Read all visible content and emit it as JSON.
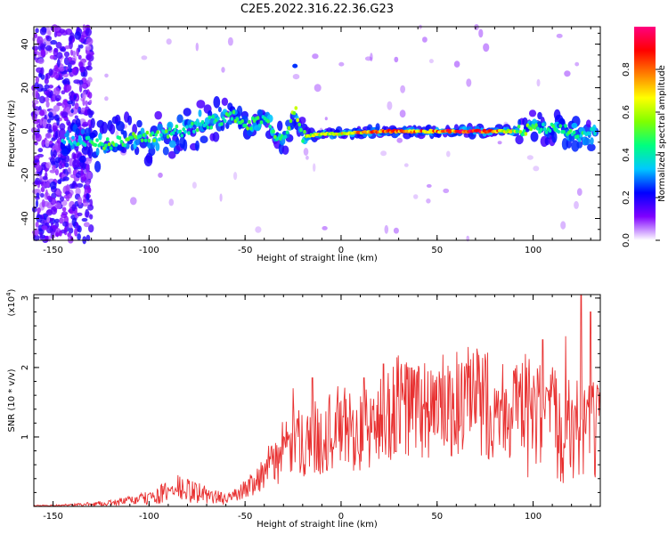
{
  "title": "C2E5.2022.316.22.36.G23",
  "chart_data": [
    {
      "type": "heatmap",
      "xlabel": "Height of straight line (km)",
      "ylabel": "Frequency (Hz)",
      "xlim": [
        -160,
        135
      ],
      "ylim": [
        -50,
        48
      ],
      "xticks": [
        -150,
        -100,
        -50,
        0,
        50,
        100
      ],
      "yticks": [
        -40,
        -20,
        0,
        20,
        40
      ],
      "colorbar": {
        "label": "Normalized spectral amplitude",
        "range": [
          0,
          1
        ],
        "ticks": [
          "0.0",
          "0.2",
          "0.4",
          "0.6",
          "0.8"
        ],
        "colormap": [
          "#ffffff",
          "#7f00ff",
          "#0000ff",
          "#00c8ff",
          "#00ff7f",
          "#80ff00",
          "#ffff00",
          "#ff8000",
          "#ff0000",
          "#ff007f"
        ]
      },
      "ridge": [
        {
          "x": -145,
          "y": -3,
          "amp": 0.35
        },
        {
          "x": -135,
          "y": -5,
          "amp": 0.45
        },
        {
          "x": -125,
          "y": -6,
          "amp": 0.5
        },
        {
          "x": -115,
          "y": -5,
          "amp": 0.5
        },
        {
          "x": -105,
          "y": -3,
          "amp": 0.5
        },
        {
          "x": -95,
          "y": -2,
          "amp": 0.5
        },
        {
          "x": -85,
          "y": 0,
          "amp": 0.45
        },
        {
          "x": -75,
          "y": 2,
          "amp": 0.45
        },
        {
          "x": -65,
          "y": 5,
          "amp": 0.45
        },
        {
          "x": -55,
          "y": 7,
          "amp": 0.5
        },
        {
          "x": -48,
          "y": 3,
          "amp": 0.5
        },
        {
          "x": -40,
          "y": 6,
          "amp": 0.45
        },
        {
          "x": -34,
          "y": -1,
          "amp": 0.5
        },
        {
          "x": -29,
          "y": -4,
          "amp": 0.5
        },
        {
          "x": -24,
          "y": 10,
          "amp": 0.6
        },
        {
          "x": -20,
          "y": -2,
          "amp": 0.6
        },
        {
          "x": 0,
          "y": -1,
          "amp": 0.7
        },
        {
          "x": 20,
          "y": 0,
          "amp": 0.85
        },
        {
          "x": 50,
          "y": 0,
          "amp": 0.85
        },
        {
          "x": 70,
          "y": 0,
          "amp": 0.95
        },
        {
          "x": 90,
          "y": 0,
          "amp": 0.65
        },
        {
          "x": 100,
          "y": 2,
          "amp": 0.5
        },
        {
          "x": 115,
          "y": 1,
          "amp": 0.5
        },
        {
          "x": 125,
          "y": -2,
          "amp": 0.45
        },
        {
          "x": 133,
          "y": -1,
          "amp": 0.45
        }
      ]
    },
    {
      "type": "line",
      "xlabel": "Height of straight line (km)",
      "ylabel": "SNR (10 * v/v)",
      "y_scale_label": "(x10",
      "y_scale_exponent": "4",
      "y_scale_suffix": ")",
      "xlim": [
        -160,
        135
      ],
      "ylim": [
        0,
        3.05
      ],
      "xticks": [
        -150,
        -100,
        -50,
        0,
        50,
        100
      ],
      "yticks": [
        1,
        2,
        3
      ],
      "color": "#e83030",
      "envelope": [
        {
          "x": -160,
          "y": 0.01
        },
        {
          "x": -140,
          "y": 0.02
        },
        {
          "x": -120,
          "y": 0.05
        },
        {
          "x": -100,
          "y": 0.12
        },
        {
          "x": -85,
          "y": 0.25
        },
        {
          "x": -75,
          "y": 0.2
        },
        {
          "x": -60,
          "y": 0.1
        },
        {
          "x": -50,
          "y": 0.25
        },
        {
          "x": -40,
          "y": 0.5
        },
        {
          "x": -30,
          "y": 0.8
        },
        {
          "x": -20,
          "y": 0.95
        },
        {
          "x": -10,
          "y": 1.0
        },
        {
          "x": 0,
          "y": 1.15
        },
        {
          "x": 10,
          "y": 1.05
        },
        {
          "x": 20,
          "y": 1.2
        },
        {
          "x": 30,
          "y": 1.45
        },
        {
          "x": 40,
          "y": 1.4
        },
        {
          "x": 50,
          "y": 1.4
        },
        {
          "x": 70,
          "y": 1.5
        },
        {
          "x": 80,
          "y": 1.45
        },
        {
          "x": 90,
          "y": 1.4
        },
        {
          "x": 100,
          "y": 1.25
        },
        {
          "x": 110,
          "y": 1.2
        },
        {
          "x": 120,
          "y": 1.1
        },
        {
          "x": 135,
          "y": 1.05
        }
      ],
      "peaks": [
        {
          "x": -85,
          "y": 0.45
        },
        {
          "x": -25,
          "y": 1.7
        },
        {
          "x": -15,
          "y": 1.85
        },
        {
          "x": 12,
          "y": 1.85
        },
        {
          "x": 22,
          "y": 2.05
        },
        {
          "x": 37,
          "y": 2.0
        },
        {
          "x": 58,
          "y": 1.85
        },
        {
          "x": 90,
          "y": 1.95
        },
        {
          "x": 105,
          "y": 2.4
        },
        {
          "x": 117,
          "y": 2.45
        },
        {
          "x": 125,
          "y": 3.05
        },
        {
          "x": 130,
          "y": 2.8
        }
      ]
    }
  ]
}
